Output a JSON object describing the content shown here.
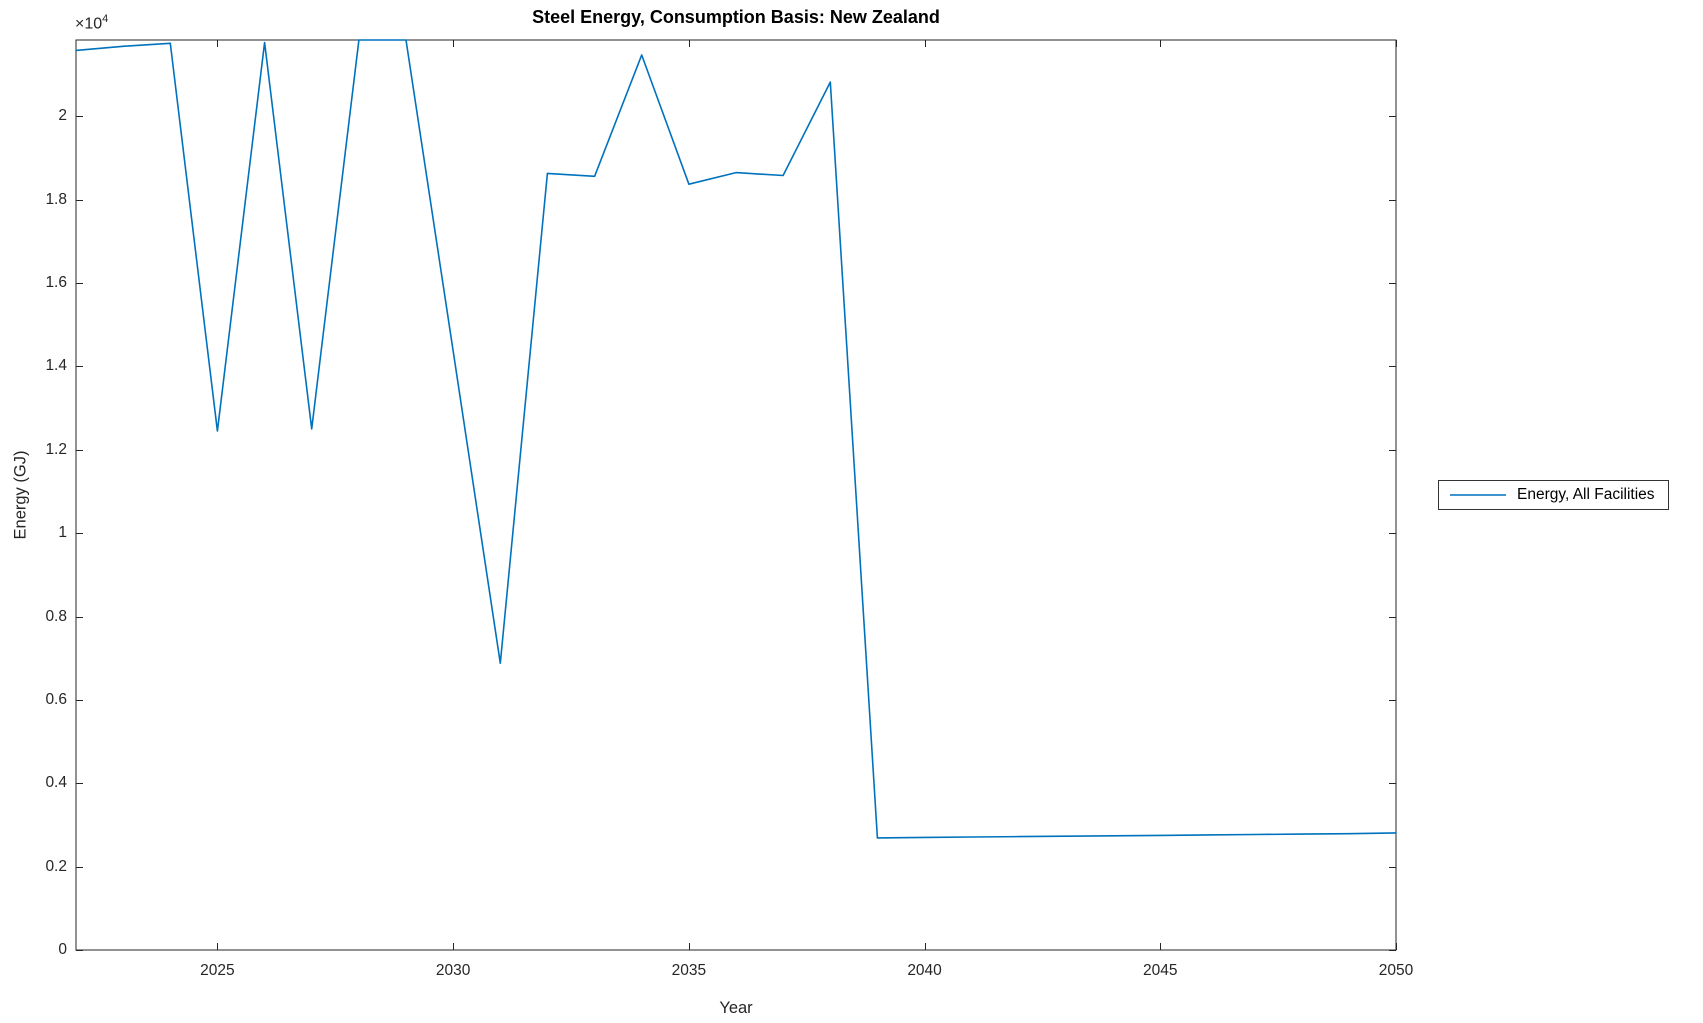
{
  "figure": {
    "background_color": "#ffffff",
    "axis_color": "#262626",
    "title_color": "#000000"
  },
  "chart_data": {
    "type": "line",
    "title": "Steel Energy, Consumption Basis: New Zealand",
    "xlabel": "Year",
    "ylabel": "Energy (GJ)",
    "y_multiplier_base": "×10",
    "y_multiplier_exp": "4",
    "grid": false,
    "xlim": [
      2022,
      2050
    ],
    "ylim": [
      0,
      21830
    ],
    "x_ticks": [
      2025,
      2030,
      2035,
      2040,
      2045,
      2050
    ],
    "y_ticks": [
      {
        "value": 0,
        "label": "0"
      },
      {
        "value": 2000,
        "label": "0.2"
      },
      {
        "value": 4000,
        "label": "0.4"
      },
      {
        "value": 6000,
        "label": "0.6"
      },
      {
        "value": 8000,
        "label": "0.8"
      },
      {
        "value": 10000,
        "label": "1"
      },
      {
        "value": 12000,
        "label": "1.2"
      },
      {
        "value": 14000,
        "label": "1.4"
      },
      {
        "value": 16000,
        "label": "1.6"
      },
      {
        "value": 18000,
        "label": "1.8"
      },
      {
        "value": 20000,
        "label": "2"
      }
    ],
    "series": [
      {
        "name": "Energy, All Facilities",
        "color": "#0072BD",
        "x": [
          2022,
          2023,
          2024,
          2025,
          2026,
          2027,
          2028,
          2029,
          2030,
          2031,
          2032,
          2033,
          2034,
          2035,
          2036,
          2037,
          2038,
          2039,
          2040,
          2041,
          2042,
          2043,
          2044,
          2045,
          2046,
          2047,
          2048,
          2049,
          2050
        ],
        "y": [
          21580,
          21680,
          21750,
          12450,
          21770,
          12500,
          21830,
          21830,
          14380,
          6880,
          18630,
          18560,
          21470,
          18370,
          18650,
          18580,
          20820,
          2690,
          2700,
          2710,
          2720,
          2730,
          2740,
          2750,
          2760,
          2770,
          2780,
          2790,
          2810
        ]
      }
    ],
    "legend": {
      "position": "right-outside",
      "entries": [
        "Energy, All Facilities"
      ]
    }
  }
}
